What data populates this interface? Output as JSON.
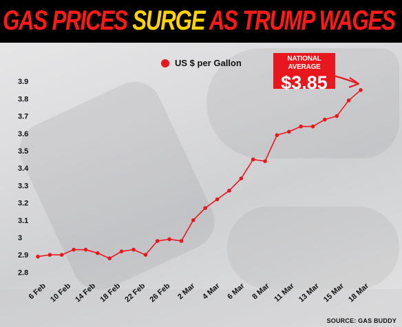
{
  "headline": {
    "part1": "GAS PRICES ",
    "part2": "SURGE",
    "part3": " AS TRUMP WAGES WAR"
  },
  "callout": {
    "label": "NATIONAL AVERAGE",
    "value": "$3.85"
  },
  "source": "SOURCE: GAS BUDDY",
  "colors": {
    "accent": "#e8171e",
    "headline_red": "#ff1a1a",
    "headline_yellow": "#ffd200",
    "banner": "#000000"
  },
  "chart_data": {
    "type": "line",
    "title": "",
    "legend": "US $ per Gallon",
    "legend_position": "top-center",
    "ylim": [
      2.75,
      3.95
    ],
    "yticks": [
      "2.8",
      "2.9",
      "3",
      "3.1",
      "3.2",
      "3.3",
      "3.4",
      "3.5",
      "3.6",
      "3.7",
      "3.8",
      "3.9"
    ],
    "xticks": [
      "6 Feb",
      "10 Feb",
      "14 Feb",
      "18 Feb",
      "22 Feb",
      "26 Feb",
      "2 Mar",
      "4 Mar",
      "6 Mar",
      "8 Mar",
      "11 Mar",
      "13 Mar",
      "15 Mar",
      "18 Mar"
    ],
    "series": [
      {
        "name": "US $ per Gallon",
        "values": [
          2.89,
          2.9,
          2.9,
          2.93,
          2.93,
          2.91,
          2.88,
          2.92,
          2.93,
          2.9,
          2.98,
          2.99,
          2.98,
          3.1,
          3.17,
          3.22,
          3.27,
          3.34,
          3.45,
          3.44,
          3.59,
          3.61,
          3.64,
          3.64,
          3.68,
          3.7,
          3.79,
          3.85
        ]
      }
    ]
  }
}
